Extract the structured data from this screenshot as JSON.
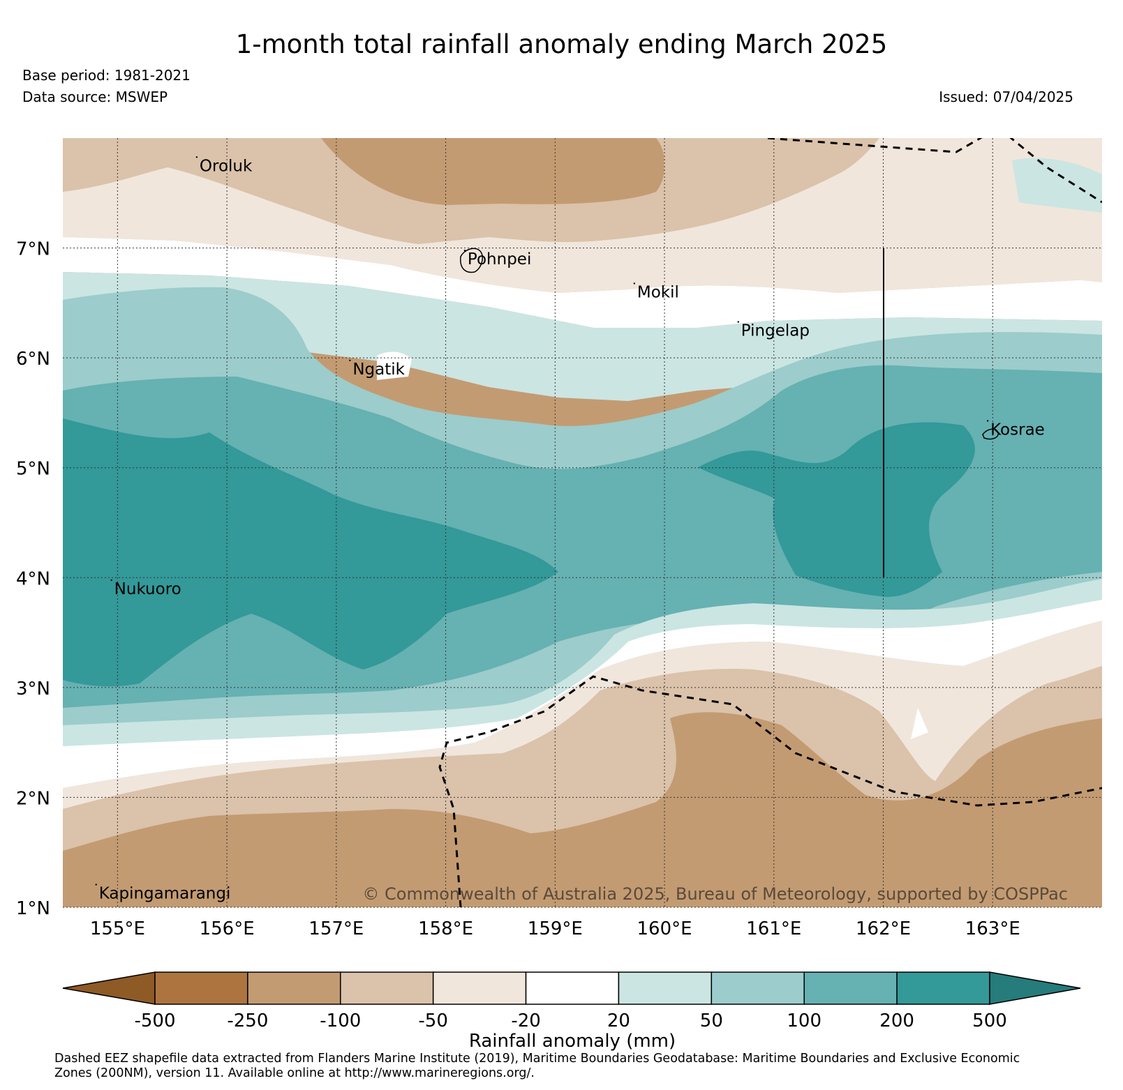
{
  "map": {
    "title": "1-month total rainfall anomaly ending March 2025",
    "base_period": "Base period: 1981-2021",
    "data_source": "Data source: MSWEP",
    "issued": "Issued: 07/04/2025",
    "copyright": "© Commonwealth of Australia 2025, Bureau of Meteorology, supported by COSPPac",
    "lon_range": [
      154.5,
      164.0
    ],
    "lat_range": [
      1.0,
      8.0
    ],
    "lat_ticks": [
      {
        "value": 7,
        "label": "7°N"
      },
      {
        "value": 6,
        "label": "6°N"
      },
      {
        "value": 5,
        "label": "5°N"
      },
      {
        "value": 4,
        "label": "4°N"
      },
      {
        "value": 3,
        "label": "3°N"
      },
      {
        "value": 2,
        "label": "2°N"
      },
      {
        "value": 1,
        "label": "1°N"
      }
    ],
    "lon_ticks": [
      {
        "value": 155,
        "label": "155°E"
      },
      {
        "value": 156,
        "label": "156°E"
      },
      {
        "value": 157,
        "label": "157°E"
      },
      {
        "value": 158,
        "label": "158°E"
      },
      {
        "value": 159,
        "label": "159°E"
      },
      {
        "value": 160,
        "label": "160°E"
      },
      {
        "value": 161,
        "label": "161°E"
      },
      {
        "value": 162,
        "label": "162°E"
      },
      {
        "value": 163,
        "label": "163°E"
      }
    ],
    "places": [
      {
        "name": "Oroluk",
        "lon": 155.75,
        "lat": 7.7
      },
      {
        "name": "Pohnpei",
        "lon": 158.2,
        "lat": 6.85
      },
      {
        "name": "Mokil",
        "lon": 159.75,
        "lat": 6.55
      },
      {
        "name": "Pingelap",
        "lon": 160.7,
        "lat": 6.2
      },
      {
        "name": "Ngatik",
        "lon": 157.15,
        "lat": 5.85
      },
      {
        "name": "Kosrae",
        "lon": 162.98,
        "lat": 5.3
      },
      {
        "name": "Nukuoro",
        "lon": 154.97,
        "lat": 3.85
      },
      {
        "name": "Kapingamarangi",
        "lon": 154.83,
        "lat": 1.08
      }
    ]
  },
  "legend": {
    "title": "Rainfall anomaly (mm)",
    "tick_labels": [
      "-500",
      "-250",
      "-100",
      "-50",
      "-20",
      "20",
      "50",
      "100",
      "200",
      "500"
    ],
    "colors": [
      "#8e5a26",
      "#ad7440",
      "#c39b72",
      "#dbc2aa",
      "#f0e6dc",
      "#ffffff",
      "#cbe5e3",
      "#9ccccb",
      "#66b1b2",
      "#339999",
      "#267b7b"
    ]
  },
  "footer": {
    "line1": "Dashed EEZ shapefile data extracted from Flanders Marine Institute (2019), Maritime Boundaries Geodatabase: Maritime Boundaries and Exclusive Economic",
    "line2": "Zones (200NM), version 11. Available online at http://www.marineregions.org/."
  }
}
